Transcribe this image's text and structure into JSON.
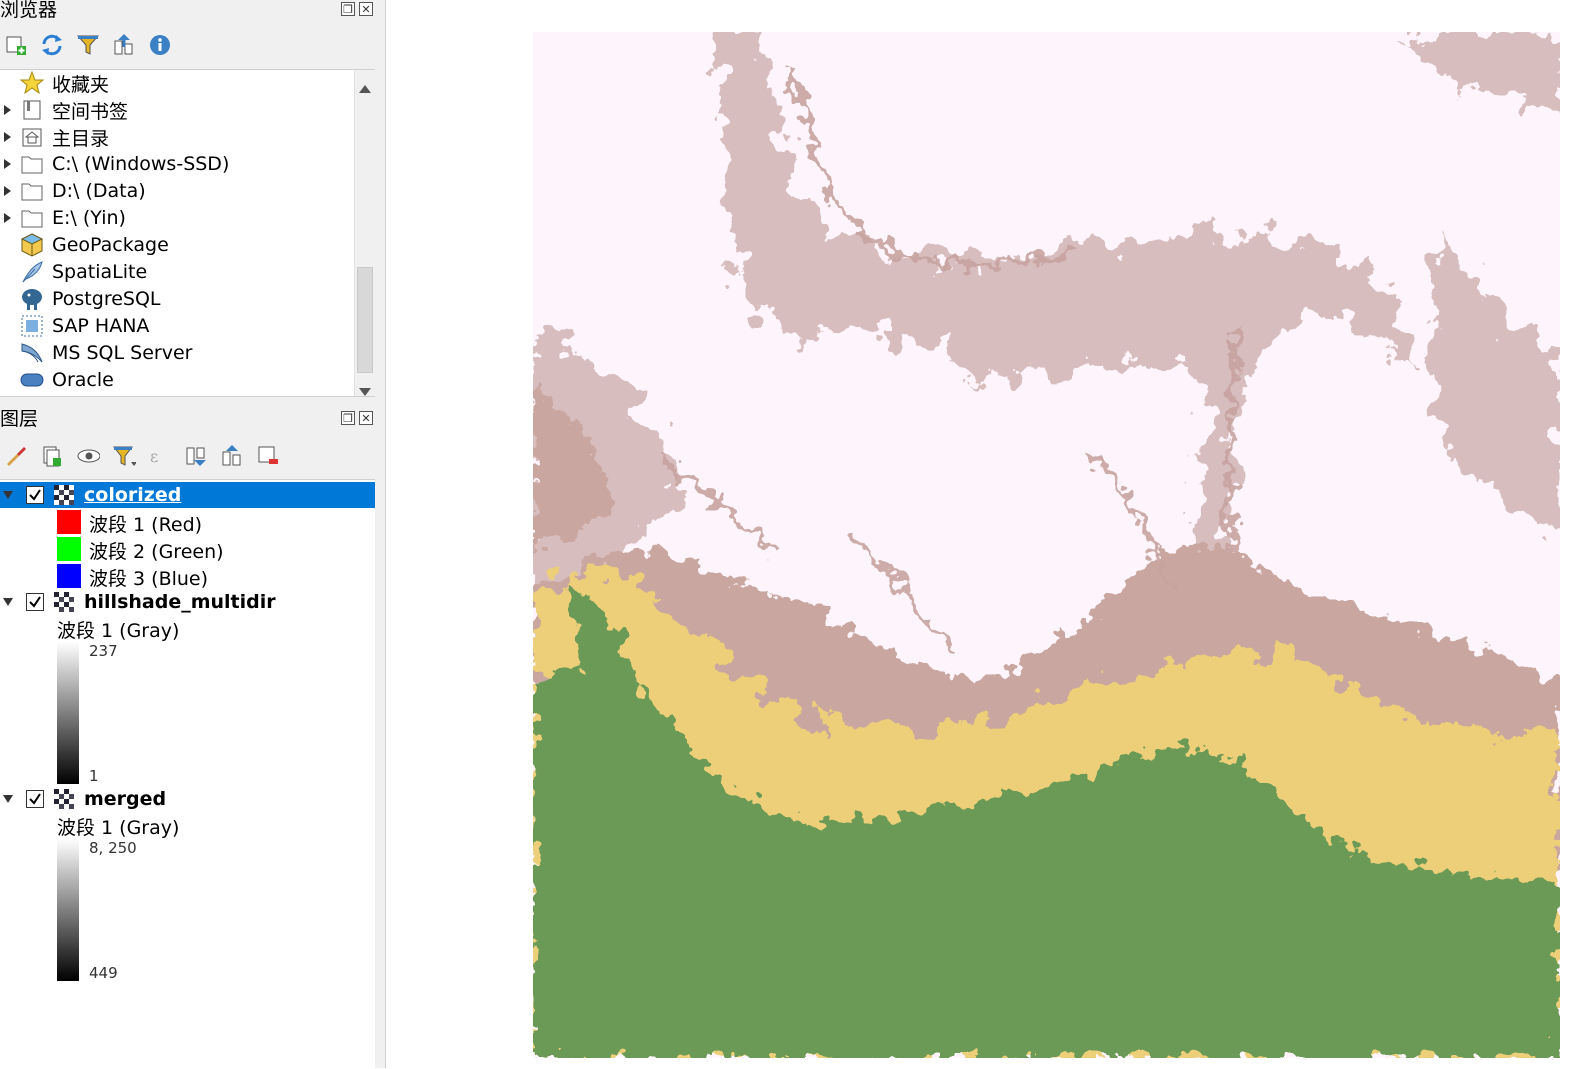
{
  "browser_panel": {
    "title": "浏览器",
    "toolbar": [
      "add-layer-icon",
      "refresh-icon",
      "filter-icon",
      "collapse-all-icon",
      "info-icon"
    ],
    "items": [
      {
        "label": "收藏夹",
        "icon": "star-icon",
        "expandable": false
      },
      {
        "label": "空间书签",
        "icon": "bookmark-icon",
        "expandable": true
      },
      {
        "label": "主目录",
        "icon": "home-icon",
        "expandable": true
      },
      {
        "label": "C:\\ (Windows-SSD)",
        "icon": "folder-icon",
        "expandable": true
      },
      {
        "label": "D:\\ (Data)",
        "icon": "folder-icon",
        "expandable": true
      },
      {
        "label": "E:\\ (Yin)",
        "icon": "folder-icon",
        "expandable": true
      },
      {
        "label": "GeoPackage",
        "icon": "geopackage-icon",
        "expandable": false
      },
      {
        "label": "SpatiaLite",
        "icon": "feather-icon",
        "expandable": false
      },
      {
        "label": "PostgreSQL",
        "icon": "elephant-icon",
        "expandable": false
      },
      {
        "label": "SAP HANA",
        "icon": "hana-icon",
        "expandable": false
      },
      {
        "label": "MS SQL Server",
        "icon": "mssql-icon",
        "expandable": false
      },
      {
        "label": "Oracle",
        "icon": "oracle-icon",
        "expandable": false
      }
    ]
  },
  "layers_panel": {
    "title": "图层",
    "layers": [
      {
        "name": "colorized",
        "selected": true,
        "bands": [
          {
            "label": "波段 1 (Red)",
            "color": "#ff0000"
          },
          {
            "label": "波段 2 (Green)",
            "color": "#00ff00"
          },
          {
            "label": "波段 3 (Blue)",
            "color": "#0000ff"
          }
        ]
      },
      {
        "name": "hillshade_multidir",
        "selected": false,
        "band": "波段 1 (Gray)",
        "max": "237",
        "min": "1"
      },
      {
        "name": "merged",
        "selected": false,
        "band": "波段 1 (Gray)",
        "max": "8, 250",
        "min": "449"
      }
    ]
  },
  "map_colors": {
    "green": "#6a9a55",
    "yellow": "#eccf78",
    "brown": "#c9a6a0",
    "white": "#fdf5fb"
  }
}
